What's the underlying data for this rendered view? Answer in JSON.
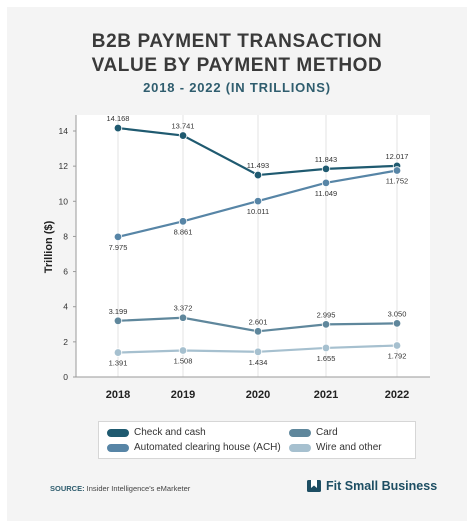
{
  "header": {
    "title_line1": "B2B PAYMENT TRANSACTION",
    "title_line2": "VALUE BY PAYMENT METHOD",
    "subtitle": "2018 - 2022 (IN TRILLIONS)"
  },
  "chart_data": {
    "type": "line",
    "title": "B2B PAYMENT TRANSACTION VALUE BY PAYMENT METHOD",
    "subtitle": "2018 - 2022 (IN TRILLIONS)",
    "xlabel": "",
    "ylabel": "Trillion ($)",
    "categories": [
      "2018",
      "2019",
      "2020",
      "2021",
      "2022"
    ],
    "ylim": [
      0,
      15
    ],
    "yticks": [
      0,
      2,
      4,
      6,
      8,
      10,
      12,
      14
    ],
    "grid": "vertical",
    "legend_position": "bottom",
    "series": [
      {
        "name": "Check and cash",
        "color": "#1f5a70",
        "values": [
          14.168,
          13.741,
          11.493,
          11.843,
          12.017
        ],
        "labels": [
          "14.168",
          "13.741",
          "11.493",
          "11.843",
          "12.017"
        ],
        "label_pos": [
          "above",
          "above",
          "above",
          "above",
          "above"
        ]
      },
      {
        "name": "Automated clearing house (ACH)",
        "color": "#5785a6",
        "values": [
          7.975,
          8.861,
          10.011,
          11.049,
          11.752
        ],
        "labels": [
          "7.975",
          "8.861",
          "10.011",
          "11.049",
          "11.752"
        ],
        "label_pos": [
          "below",
          "below",
          "below",
          "below",
          "below"
        ]
      },
      {
        "name": "Card",
        "color": "#5f879c",
        "values": [
          3.199,
          3.372,
          2.601,
          2.995,
          3.05
        ],
        "labels": [
          "3.199",
          "3.372",
          "2.601",
          "2.995",
          "3.050"
        ],
        "label_pos": [
          "above",
          "above",
          "above",
          "above",
          "above"
        ]
      },
      {
        "name": "Wire and other",
        "color": "#a6c0cf",
        "values": [
          1.391,
          1.508,
          1.434,
          1.655,
          1.792
        ],
        "labels": [
          "1.391",
          "1.508",
          "1.434",
          "1.655",
          "1.792"
        ],
        "label_pos": [
          "below",
          "below",
          "below",
          "below",
          "below"
        ]
      }
    ]
  },
  "legend": {
    "items": [
      {
        "label": "Check and cash",
        "color": "#1f5a70"
      },
      {
        "label": "Card",
        "color": "#5f879c"
      },
      {
        "label": "Automated clearing house (ACH)",
        "color": "#5785a6"
      },
      {
        "label": "Wire and other",
        "color": "#a6c0cf"
      }
    ]
  },
  "footer": {
    "source_label": "SOURCE:",
    "source_text": " Insider Intelligence's eMarketer",
    "brand": "Fit Small Business"
  }
}
